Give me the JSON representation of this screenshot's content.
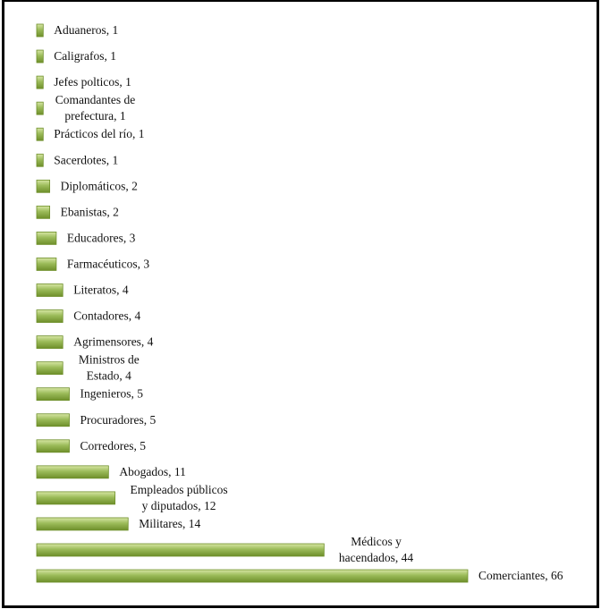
{
  "chart_data": {
    "type": "bar",
    "orientation": "horizontal",
    "title": "",
    "xlabel": "",
    "ylabel": "",
    "xlim": [
      0,
      66
    ],
    "grid": false,
    "legend": "none",
    "bar_color": "#9bbb59",
    "bar_highlight": "#d7e6a4",
    "bar_shadow": "#6e8f2a",
    "categories": [
      "Aduaneros",
      "Caligrafos",
      "Jefes polticos",
      "Comandantes de prefectura",
      "Prácticos del río",
      "Sacerdotes",
      "Diplomáticos",
      "Ebanistas",
      "Educadores",
      "Farmacéuticos",
      "Literatos",
      "Contadores",
      "Agrimensores",
      "Ministros de Estado",
      "Ingenieros",
      "Procuradores",
      "Corredores",
      "Abogados",
      "Empleados públicos y diputados",
      "Militares",
      "Médicos y hacendados",
      "Comerciantes"
    ],
    "values": [
      1,
      1,
      1,
      1,
      1,
      1,
      2,
      2,
      3,
      3,
      4,
      4,
      4,
      4,
      5,
      5,
      5,
      11,
      12,
      14,
      44,
      66
    ],
    "data_labels": [
      [
        "Aduaneros, 1"
      ],
      [
        "Caligrafos, 1"
      ],
      [
        "Jefes polticos, 1"
      ],
      [
        "Comandantes de",
        "prefectura, 1"
      ],
      [
        "Prácticos del río, 1"
      ],
      [
        "Sacerdotes, 1"
      ],
      [
        "Diplomáticos, 2"
      ],
      [
        "Ebanistas, 2"
      ],
      [
        "Educadores, 3"
      ],
      [
        "Farmacéuticos, 3"
      ],
      [
        "Literatos, 4"
      ],
      [
        "Contadores, 4"
      ],
      [
        "Agrimensores, 4"
      ],
      [
        "Ministros de",
        "Estado, 4"
      ],
      [
        "Ingenieros, 5"
      ],
      [
        "Procuradores, 5"
      ],
      [
        "Corredores, 5"
      ],
      [
        "Abogados, 11"
      ],
      [
        "Empleados públicos",
        "y diputados, 12"
      ],
      [
        "Militares, 14"
      ],
      [
        "Médicos y",
        "hacendados, 44"
      ],
      [
        "Comerciantes, 66"
      ]
    ]
  }
}
